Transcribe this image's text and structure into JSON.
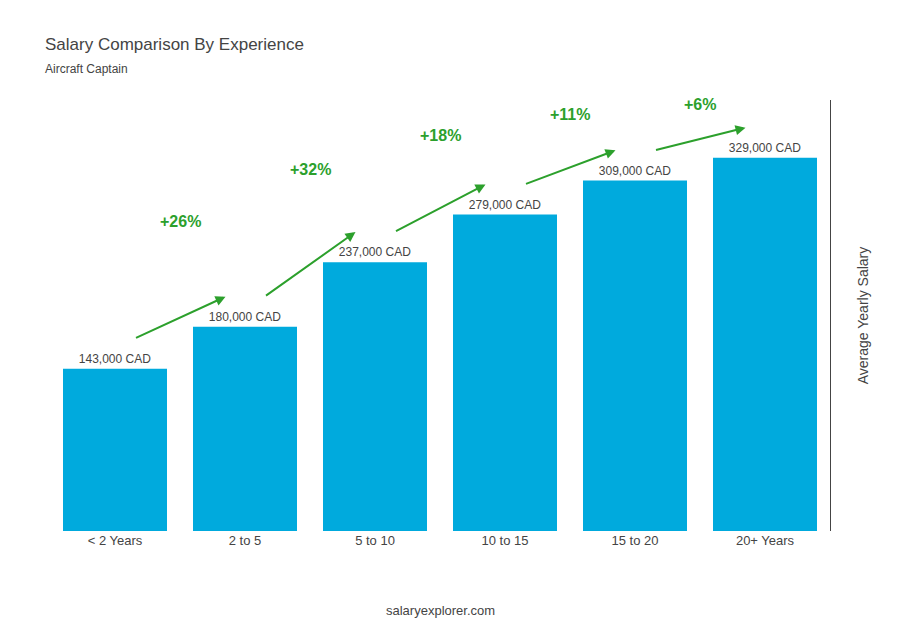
{
  "chart_data": {
    "type": "bar",
    "title": "Salary Comparison By Experience",
    "subtitle": "Aircraft Captain",
    "ylabel": "Average Yearly Salary",
    "footer": "salaryexplorer.com",
    "categories": [
      "< 2 Years",
      "2 to 5",
      "5 to 10",
      "10 to 15",
      "15 to 20",
      "20+ Years"
    ],
    "values": [
      143000,
      180000,
      237000,
      279000,
      309000,
      329000
    ],
    "value_labels": [
      "143,000 CAD",
      "180,000 CAD",
      "237,000 CAD",
      "279,000 CAD",
      "309,000 CAD",
      "329,000 CAD"
    ],
    "data_labels": true,
    "annotations": [
      "+26%",
      "+32%",
      "+18%",
      "+11%",
      "+6%"
    ],
    "color": "#00AADD",
    "ylim": [
      0,
      380000
    ],
    "grid": false,
    "tick_labels": "x"
  }
}
